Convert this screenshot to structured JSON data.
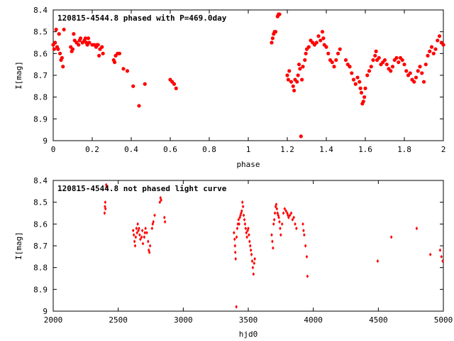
{
  "colors": {
    "marker": "#ff0000",
    "axis": "#000000",
    "background": "#ffffff"
  },
  "chart_data": [
    {
      "type": "scatter",
      "title": "120815-4544.8 phased with P=469.0day",
      "xlabel": "phase",
      "ylabel": "I[mag]",
      "xlim": [
        0,
        2
      ],
      "ylim": [
        8.4,
        9
      ],
      "y_inverted": true,
      "grid": false,
      "marker": "filled-circle",
      "xticks": [
        0,
        0.2,
        0.4,
        0.6,
        0.8,
        1,
        1.2,
        1.4,
        1.6,
        1.8,
        2
      ],
      "xtick_labels": [
        "0",
        "0.2",
        "0.4",
        "0.6",
        "0.8",
        "1",
        "1.2",
        "1.4",
        "1.6",
        "1.8",
        "2"
      ],
      "yticks": [
        8.4,
        8.5,
        8.6,
        8.7,
        8.8,
        8.9,
        9
      ],
      "ytick_labels": [
        "8.4",
        "8.5",
        "8.6",
        "8.7",
        "8.8",
        "8.9",
        "9"
      ],
      "points": [
        [
          0.0,
          8.56
        ],
        [
          0.005,
          8.58
        ],
        [
          0.01,
          8.55
        ],
        [
          0.015,
          8.49
        ],
        [
          0.02,
          8.57
        ],
        [
          0.025,
          8.58
        ],
        [
          0.03,
          8.51
        ],
        [
          0.035,
          8.6
        ],
        [
          0.04,
          8.63
        ],
        [
          0.045,
          8.62
        ],
        [
          0.05,
          8.66
        ],
        [
          0.055,
          8.49
        ],
        [
          0.09,
          8.57
        ],
        [
          0.095,
          8.59
        ],
        [
          0.1,
          8.58
        ],
        [
          0.105,
          8.51
        ],
        [
          0.11,
          8.54
        ],
        [
          0.12,
          8.55
        ],
        [
          0.13,
          8.56
        ],
        [
          0.135,
          8.54
        ],
        [
          0.14,
          8.53
        ],
        [
          0.15,
          8.55
        ],
        [
          0.16,
          8.54
        ],
        [
          0.165,
          8.53
        ],
        [
          0.17,
          8.55
        ],
        [
          0.175,
          8.56
        ],
        [
          0.18,
          8.53
        ],
        [
          0.185,
          8.55
        ],
        [
          0.2,
          8.56
        ],
        [
          0.21,
          8.56
        ],
        [
          0.22,
          8.57
        ],
        [
          0.225,
          8.56
        ],
        [
          0.23,
          8.56
        ],
        [
          0.235,
          8.61
        ],
        [
          0.24,
          8.58
        ],
        [
          0.25,
          8.57
        ],
        [
          0.255,
          8.6
        ],
        [
          0.31,
          8.63
        ],
        [
          0.315,
          8.64
        ],
        [
          0.32,
          8.61
        ],
        [
          0.33,
          8.6
        ],
        [
          0.34,
          8.6
        ],
        [
          0.36,
          8.67
        ],
        [
          0.38,
          8.68
        ],
        [
          0.41,
          8.75
        ],
        [
          0.44,
          8.84
        ],
        [
          0.47,
          8.74
        ],
        [
          0.6,
          8.72
        ],
        [
          0.61,
          8.73
        ],
        [
          0.62,
          8.74
        ],
        [
          0.63,
          8.76
        ],
        [
          1.12,
          8.55
        ],
        [
          1.125,
          8.53
        ],
        [
          1.13,
          8.51
        ],
        [
          1.135,
          8.5
        ],
        [
          1.14,
          8.5
        ],
        [
          1.15,
          8.43
        ],
        [
          1.155,
          8.42
        ],
        [
          1.16,
          8.42
        ],
        [
          1.2,
          8.7
        ],
        [
          1.205,
          8.72
        ],
        [
          1.21,
          8.68
        ],
        [
          1.22,
          8.73
        ],
        [
          1.23,
          8.75
        ],
        [
          1.235,
          8.77
        ],
        [
          1.24,
          8.72
        ],
        [
          1.25,
          8.73
        ],
        [
          1.255,
          8.7
        ],
        [
          1.26,
          8.65
        ],
        [
          1.265,
          8.67
        ],
        [
          1.27,
          8.98
        ],
        [
          1.275,
          8.72
        ],
        [
          1.28,
          8.66
        ],
        [
          1.29,
          8.63
        ],
        [
          1.295,
          8.6
        ],
        [
          1.3,
          8.58
        ],
        [
          1.31,
          8.57
        ],
        [
          1.32,
          8.54
        ],
        [
          1.33,
          8.55
        ],
        [
          1.34,
          8.56
        ],
        [
          1.35,
          8.55
        ],
        [
          1.36,
          8.52
        ],
        [
          1.37,
          8.54
        ],
        [
          1.38,
          8.5
        ],
        [
          1.385,
          8.53
        ],
        [
          1.39,
          8.56
        ],
        [
          1.4,
          8.57
        ],
        [
          1.41,
          8.6
        ],
        [
          1.42,
          8.63
        ],
        [
          1.43,
          8.64
        ],
        [
          1.44,
          8.66
        ],
        [
          1.45,
          8.63
        ],
        [
          1.46,
          8.6
        ],
        [
          1.47,
          8.58
        ],
        [
          1.5,
          8.63
        ],
        [
          1.51,
          8.65
        ],
        [
          1.52,
          8.66
        ],
        [
          1.53,
          8.69
        ],
        [
          1.54,
          8.72
        ],
        [
          1.55,
          8.74
        ],
        [
          1.56,
          8.71
        ],
        [
          1.57,
          8.73
        ],
        [
          1.575,
          8.76
        ],
        [
          1.58,
          8.78
        ],
        [
          1.585,
          8.83
        ],
        [
          1.59,
          8.82
        ],
        [
          1.595,
          8.8
        ],
        [
          1.6,
          8.76
        ],
        [
          1.61,
          8.7
        ],
        [
          1.62,
          8.68
        ],
        [
          1.63,
          8.66
        ],
        [
          1.64,
          8.63
        ],
        [
          1.65,
          8.61
        ],
        [
          1.655,
          8.59
        ],
        [
          1.66,
          8.63
        ],
        [
          1.67,
          8.62
        ],
        [
          1.68,
          8.65
        ],
        [
          1.69,
          8.64
        ],
        [
          1.7,
          8.63
        ],
        [
          1.71,
          8.65
        ],
        [
          1.72,
          8.67
        ],
        [
          1.73,
          8.68
        ],
        [
          1.74,
          8.66
        ],
        [
          1.75,
          8.63
        ],
        [
          1.76,
          8.62
        ],
        [
          1.77,
          8.64
        ],
        [
          1.78,
          8.62
        ],
        [
          1.79,
          8.63
        ],
        [
          1.8,
          8.65
        ],
        [
          1.81,
          8.68
        ],
        [
          1.82,
          8.7
        ],
        [
          1.83,
          8.69
        ],
        [
          1.84,
          8.72
        ],
        [
          1.85,
          8.73
        ],
        [
          1.86,
          8.71
        ],
        [
          1.87,
          8.68
        ],
        [
          1.88,
          8.66
        ],
        [
          1.89,
          8.69
        ],
        [
          1.9,
          8.73
        ],
        [
          1.91,
          8.65
        ],
        [
          1.92,
          8.61
        ],
        [
          1.93,
          8.59
        ],
        [
          1.94,
          8.57
        ],
        [
          1.95,
          8.6
        ],
        [
          1.96,
          8.58
        ],
        [
          1.97,
          8.54
        ],
        [
          1.98,
          8.52
        ],
        [
          1.99,
          8.55
        ],
        [
          2.0,
          8.56
        ]
      ]
    },
    {
      "type": "scatter",
      "title": "120815-4544.8 not phased light curve",
      "xlabel": "hjd0",
      "ylabel": "I[mag]",
      "xlim": [
        2000,
        5000
      ],
      "ylim": [
        8.4,
        9
      ],
      "y_inverted": true,
      "grid": false,
      "marker": "small-diamond",
      "xticks": [
        2000,
        2500,
        3000,
        3500,
        4000,
        4500,
        5000
      ],
      "xtick_labels": [
        "2000",
        "2500",
        "3000",
        "3500",
        "4000",
        "4500",
        "5000"
      ],
      "yticks": [
        8.4,
        8.5,
        8.6,
        8.7,
        8.8,
        8.9,
        9
      ],
      "ytick_labels": [
        "8.4",
        "8.5",
        "8.6",
        "8.7",
        "8.8",
        "8.9",
        "9"
      ],
      "points": [
        [
          2395,
          8.55
        ],
        [
          2398,
          8.52
        ],
        [
          2400,
          8.5
        ],
        [
          2402,
          8.53
        ],
        [
          2408,
          8.42
        ],
        [
          2410,
          8.43
        ],
        [
          2615,
          8.63
        ],
        [
          2620,
          8.65
        ],
        [
          2625,
          8.68
        ],
        [
          2630,
          8.7
        ],
        [
          2635,
          8.66
        ],
        [
          2640,
          8.62
        ],
        [
          2645,
          8.64
        ],
        [
          2650,
          8.6
        ],
        [
          2655,
          8.63
        ],
        [
          2660,
          8.62
        ],
        [
          2665,
          8.65
        ],
        [
          2670,
          8.67
        ],
        [
          2680,
          8.66
        ],
        [
          2685,
          8.63
        ],
        [
          2690,
          8.69
        ],
        [
          2700,
          8.66
        ],
        [
          2705,
          8.64
        ],
        [
          2710,
          8.62
        ],
        [
          2720,
          8.64
        ],
        [
          2730,
          8.68
        ],
        [
          2735,
          8.72
        ],
        [
          2740,
          8.73
        ],
        [
          2745,
          8.7
        ],
        [
          2760,
          8.62
        ],
        [
          2765,
          8.6
        ],
        [
          2770,
          8.59
        ],
        [
          2780,
          8.56
        ],
        [
          2820,
          8.5
        ],
        [
          2825,
          8.48
        ],
        [
          2830,
          8.49
        ],
        [
          2855,
          8.57
        ],
        [
          2860,
          8.59
        ],
        [
          3390,
          8.64
        ],
        [
          3395,
          8.67
        ],
        [
          3398,
          8.7
        ],
        [
          3400,
          8.73
        ],
        [
          3403,
          8.76
        ],
        [
          3408,
          8.98
        ],
        [
          3410,
          8.66
        ],
        [
          3415,
          8.62
        ],
        [
          3420,
          8.6
        ],
        [
          3425,
          8.58
        ],
        [
          3430,
          8.6
        ],
        [
          3435,
          8.57
        ],
        [
          3440,
          8.56
        ],
        [
          3445,
          8.55
        ],
        [
          3450,
          8.54
        ],
        [
          3455,
          8.5
        ],
        [
          3460,
          8.52
        ],
        [
          3465,
          8.56
        ],
        [
          3470,
          8.58
        ],
        [
          3475,
          8.6
        ],
        [
          3480,
          8.62
        ],
        [
          3485,
          8.64
        ],
        [
          3490,
          8.66
        ],
        [
          3495,
          8.63
        ],
        [
          3500,
          8.62
        ],
        [
          3505,
          8.65
        ],
        [
          3510,
          8.68
        ],
        [
          3515,
          8.7
        ],
        [
          3520,
          8.72
        ],
        [
          3525,
          8.74
        ],
        [
          3530,
          8.77
        ],
        [
          3535,
          8.8
        ],
        [
          3540,
          8.83
        ],
        [
          3545,
          8.78
        ],
        [
          3550,
          8.76
        ],
        [
          3680,
          8.65
        ],
        [
          3685,
          8.68
        ],
        [
          3690,
          8.71
        ],
        [
          3695,
          8.6
        ],
        [
          3700,
          8.58
        ],
        [
          3705,
          8.55
        ],
        [
          3710,
          8.52
        ],
        [
          3715,
          8.51
        ],
        [
          3720,
          8.53
        ],
        [
          3725,
          8.55
        ],
        [
          3730,
          8.56
        ],
        [
          3735,
          8.57
        ],
        [
          3740,
          8.59
        ],
        [
          3745,
          8.62
        ],
        [
          3750,
          8.65
        ],
        [
          3760,
          8.6
        ],
        [
          3770,
          8.55
        ],
        [
          3780,
          8.53
        ],
        [
          3790,
          8.54
        ],
        [
          3800,
          8.55
        ],
        [
          3805,
          8.56
        ],
        [
          3810,
          8.57
        ],
        [
          3820,
          8.56
        ],
        [
          3830,
          8.55
        ],
        [
          3840,
          8.58
        ],
        [
          3850,
          8.57
        ],
        [
          3860,
          8.6
        ],
        [
          3870,
          8.62
        ],
        [
          3920,
          8.6
        ],
        [
          3925,
          8.63
        ],
        [
          3930,
          8.65
        ],
        [
          3940,
          8.7
        ],
        [
          3950,
          8.75
        ],
        [
          3955,
          8.84
        ],
        [
          4495,
          8.77
        ],
        [
          4600,
          8.66
        ],
        [
          4795,
          8.62
        ],
        [
          4900,
          8.74
        ],
        [
          4975,
          8.72
        ],
        [
          4985,
          8.75
        ],
        [
          4995,
          8.77
        ]
      ]
    }
  ]
}
